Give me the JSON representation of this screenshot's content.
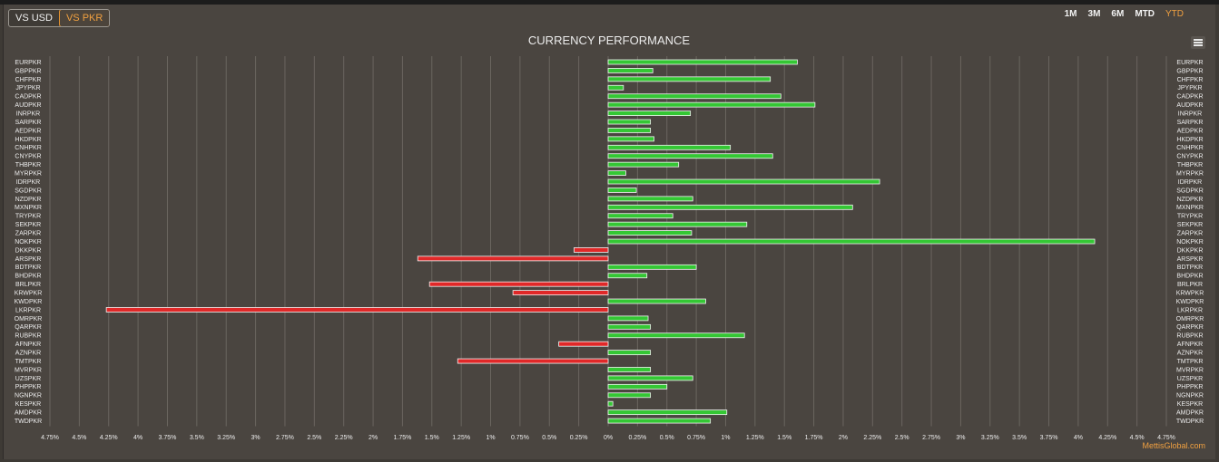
{
  "toggle": {
    "items": [
      "VS USD",
      "VS PKR"
    ],
    "active": 1
  },
  "ranges": {
    "items": [
      "1M",
      "3M",
      "6M",
      "MTD",
      "YTD"
    ],
    "active": 4
  },
  "credit": "MettisGlobal.com",
  "colors": {
    "positive": "#34c734",
    "negative": "#e02828",
    "accent": "#f0a040"
  },
  "menu_icon": "hamburger-menu-icon",
  "chart_data": {
    "type": "bar",
    "orientation": "horizontal",
    "title": "CURRENCY PERFORMANCE",
    "xlim": [
      -4.75,
      4.75
    ],
    "x_ticks": [
      "4.75%",
      "4.5%",
      "4.25%",
      "4%",
      "3.75%",
      "3.5%",
      "3.25%",
      "3%",
      "2.75%",
      "2.5%",
      "2.25%",
      "2%",
      "1.75%",
      "1.5%",
      "1.25%",
      "1%",
      "0.75%",
      "0.5%",
      "0.25%",
      "0%",
      "0.25%",
      "0.5%",
      "0.75%",
      "1%",
      "1.25%",
      "1.5%",
      "1.75%",
      "2%",
      "2.25%",
      "2.5%",
      "2.75%",
      "3%",
      "3.25%",
      "3.5%",
      "3.75%",
      "4%",
      "4.25%",
      "4.5%",
      "4.75%"
    ],
    "grid": true,
    "categories": [
      "EURPKR",
      "GBPPKR",
      "CHFPKR",
      "JPYPKR",
      "CADPKR",
      "AUDPKR",
      "INRPKR",
      "SARPKR",
      "AEDPKR",
      "HKDPKR",
      "CNHPKR",
      "CNYPKR",
      "THBPKR",
      "MYRPKR",
      "IDRPKR",
      "SGDPKR",
      "NZDPKR",
      "MXNPKR",
      "TRYPKR",
      "SEKPKR",
      "ZARPKR",
      "NOKPKR",
      "DKKPKR",
      "ARSPKR",
      "BDTPKR",
      "BHDPKR",
      "BRLPKR",
      "KRWPKR",
      "KWDPKR",
      "LKRPKR",
      "OMRPKR",
      "QARPKR",
      "RUBPKR",
      "AFNPKR",
      "AZNPKR",
      "TMTPKR",
      "MVRPKR",
      "UZSPKR",
      "PHPPKR",
      "NGNPKR",
      "KESPKR",
      "AMDPKR",
      "TWDPKR"
    ],
    "values": [
      1.61,
      0.38,
      1.38,
      0.13,
      1.47,
      1.76,
      0.7,
      0.36,
      0.36,
      0.39,
      1.04,
      1.4,
      0.6,
      0.15,
      2.31,
      0.24,
      0.72,
      2.08,
      0.55,
      1.18,
      0.71,
      4.14,
      -0.29,
      -1.62,
      0.75,
      0.33,
      -1.52,
      -0.81,
      0.83,
      -4.27,
      0.34,
      0.36,
      1.16,
      -0.42,
      0.36,
      -1.28,
      0.36,
      0.72,
      0.5,
      0.36,
      0.04,
      1.01,
      0.87
    ]
  }
}
